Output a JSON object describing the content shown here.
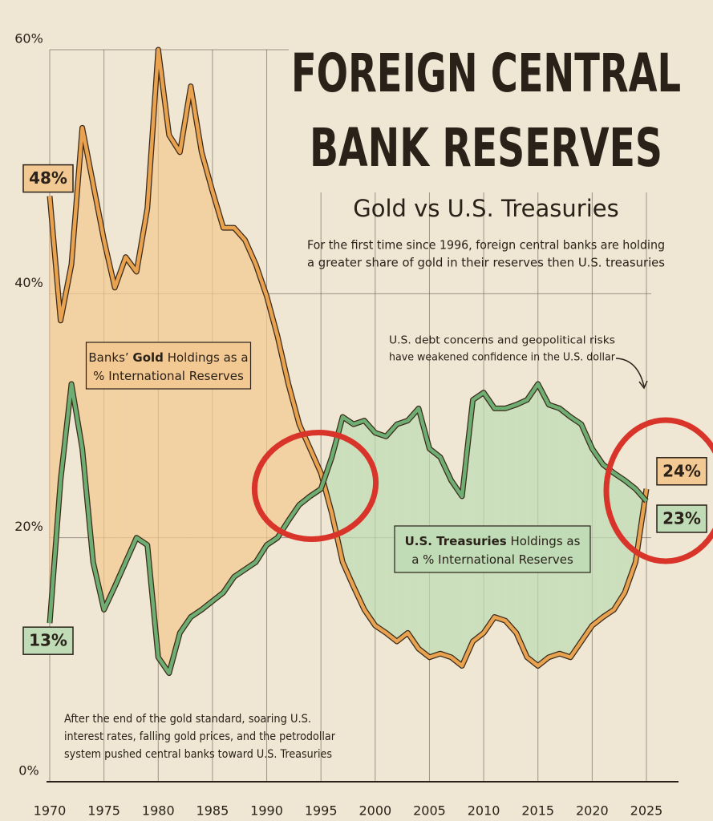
{
  "chart_data": {
    "type": "line",
    "title_lines": [
      "FOREIGN CENTRAL",
      "BANK RESERVES"
    ],
    "subtitle": "Gold vs U.S. Treasuries",
    "description_lines": [
      "For the first time since 1996, foreign central banks are holding",
      "a greater share of gold in their reserves then U.S. treasuries"
    ],
    "annotations": [
      {
        "lines": [
          "U.S. debt concerns and geopolitical risks",
          "have weakened confidence in the U.S. dollar"
        ]
      },
      {
        "lines": [
          "After the end of the gold standard, soaring U.S.",
          "interest rates, falling gold prices, and the petrodollar",
          "system pushed central banks toward U.S. Treasuries"
        ]
      }
    ],
    "x": [
      1970,
      1971,
      1972,
      1973,
      1974,
      1975,
      1976,
      1977,
      1978,
      1979,
      1980,
      1981,
      1982,
      1983,
      1984,
      1985,
      1986,
      1987,
      1988,
      1989,
      1990,
      1991,
      1992,
      1993,
      1994,
      1995,
      1996,
      1997,
      1998,
      1999,
      2000,
      2001,
      2002,
      2003,
      2004,
      2005,
      2006,
      2007,
      2008,
      2009,
      2010,
      2011,
      2012,
      2013,
      2014,
      2015,
      2016,
      2017,
      2018,
      2019,
      2020,
      2021,
      2022,
      2023,
      2024,
      2025
    ],
    "series": [
      {
        "label_lines": [
          [
            "Banks’ ",
            "Gold",
            " Holdings as a"
          ],
          [
            "% International Reserves"
          ]
        ],
        "color": "#e9a24f",
        "fill": "#f3c993",
        "values": [
          48,
          37.8,
          42.4,
          53.6,
          49,
          44.4,
          40.5,
          43,
          41.8,
          47,
          60,
          53,
          51.6,
          57,
          51.6,
          48.4,
          45.4,
          45.4,
          44.4,
          42.4,
          39.8,
          36.5,
          32.6,
          29.3,
          27.3,
          25.3,
          22,
          18,
          16,
          14.1,
          12.8,
          12.2,
          11.5,
          12.2,
          10.9,
          10.2,
          10.5,
          10.2,
          9.5,
          11.5,
          12.2,
          13.5,
          13.2,
          12.2,
          10.2,
          9.5,
          10.2,
          10.5,
          10.2,
          11.5,
          12.8,
          13.5,
          14.1,
          15.5,
          18,
          24
        ],
        "value_labels": [
          "48%",
          null,
          null,
          null,
          null,
          null,
          null,
          null,
          null,
          null,
          null,
          null,
          null,
          null,
          null,
          null,
          null,
          null,
          null,
          null,
          null,
          null,
          null,
          null,
          null,
          null,
          null,
          null,
          null,
          null,
          null,
          null,
          null,
          null,
          null,
          null,
          null,
          null,
          null,
          null,
          null,
          null,
          null,
          null,
          null,
          null,
          null,
          null,
          null,
          null,
          null,
          null,
          null,
          null,
          null,
          "24%"
        ]
      },
      {
        "label_lines": [
          [
            "U.S. Treasuries",
            " Holdings as"
          ],
          [
            "a % International Reserves"
          ]
        ],
        "color": "#6fae73",
        "fill": "#bfdcb6",
        "values": [
          13,
          24.7,
          32.6,
          27.3,
          18,
          14.1,
          16,
          18,
          20,
          19.4,
          10.2,
          8.9,
          12.2,
          13.5,
          14.1,
          14.8,
          15.5,
          16.8,
          17.4,
          18,
          19.4,
          20,
          21.4,
          22.7,
          23.4,
          24,
          26.6,
          29.9,
          29.3,
          29.6,
          28.6,
          28.3,
          29.3,
          29.6,
          30.6,
          27.3,
          26.6,
          24.7,
          23.4,
          31.3,
          31.9,
          30.6,
          30.6,
          30.9,
          31.3,
          32.6,
          30.9,
          30.6,
          29.9,
          29.3,
          27.3,
          26,
          25.3,
          24.7,
          24,
          23
        ],
        "value_labels": [
          "13%",
          null,
          null,
          null,
          null,
          null,
          null,
          null,
          null,
          null,
          null,
          null,
          null,
          null,
          null,
          null,
          null,
          null,
          null,
          null,
          null,
          null,
          null,
          null,
          null,
          null,
          null,
          null,
          null,
          null,
          null,
          null,
          null,
          null,
          null,
          null,
          null,
          null,
          null,
          null,
          null,
          null,
          null,
          null,
          null,
          null,
          null,
          null,
          null,
          null,
          null,
          null,
          null,
          null,
          null,
          "23%"
        ]
      }
    ],
    "xlim": [
      1970,
      2025
    ],
    "xticks": [
      1970,
      1975,
      1980,
      1985,
      1990,
      1995,
      2000,
      2005,
      2010,
      2015,
      2020,
      2025
    ],
    "ylim": [
      0,
      60
    ],
    "yticks": [
      {
        "value": 0,
        "label": "0%"
      },
      {
        "value": 20,
        "label": "20%"
      },
      {
        "value": 40,
        "label": "40%"
      },
      {
        "value": 60,
        "label": "60%"
      }
    ],
    "grid": true
  }
}
